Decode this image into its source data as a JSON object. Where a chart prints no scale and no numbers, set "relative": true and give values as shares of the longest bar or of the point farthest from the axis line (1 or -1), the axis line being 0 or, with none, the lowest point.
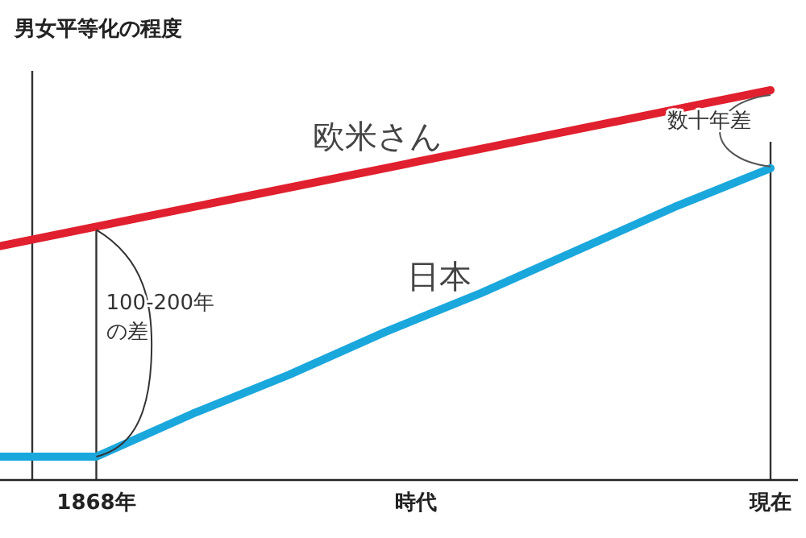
{
  "chart_data": {
    "type": "line",
    "relative": true,
    "ylabel": "男女平等化の程度",
    "xlabel": "時代",
    "categories": [
      null,
      "1868年",
      null,
      null,
      null,
      null,
      null,
      null,
      "現在"
    ],
    "series": [
      {
        "name": "欧米さん",
        "color": "#e0202e",
        "values": [
          0.6,
          0.65,
          0.7,
          0.75,
          0.8,
          0.85,
          0.9,
          0.95,
          1.0
        ]
      },
      {
        "name": "日本",
        "color": "#1aa7dc",
        "values": [
          0.06,
          0.06,
          0.17,
          0.27,
          0.38,
          0.48,
          0.59,
          0.7,
          0.8
        ]
      }
    ],
    "annotations": [
      "100-200年の差",
      "数十年差"
    ],
    "marker": "none",
    "line_style": "solid",
    "grid": "x"
  }
}
